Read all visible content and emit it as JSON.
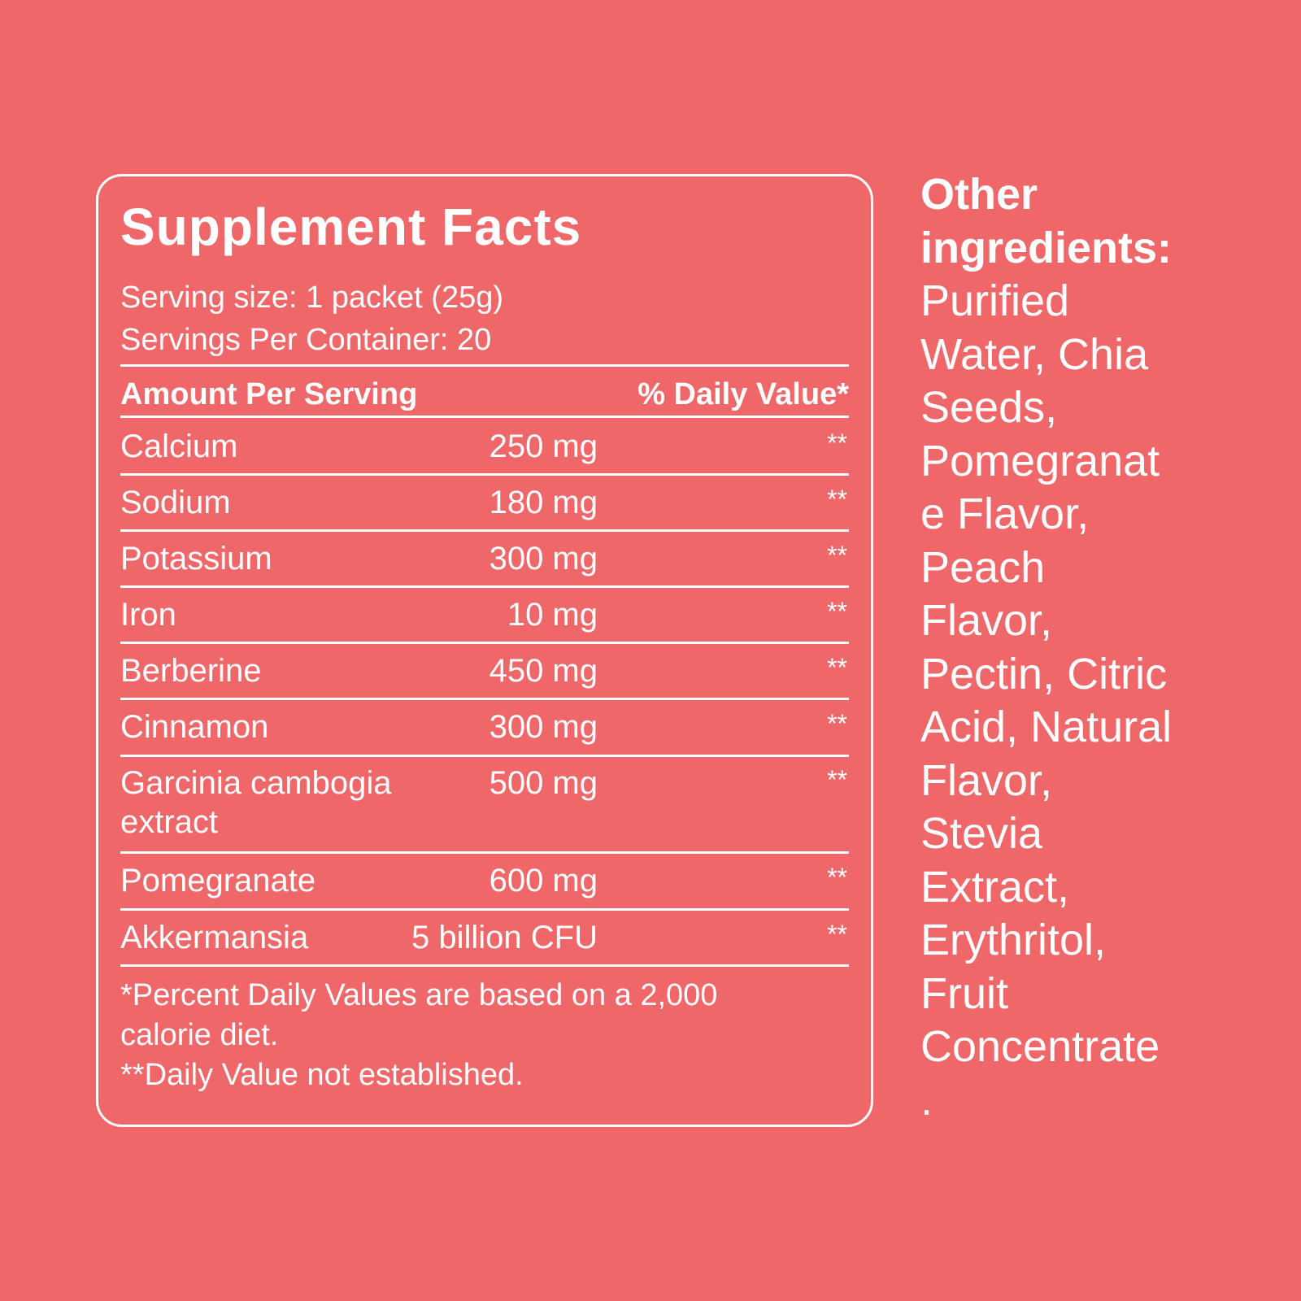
{
  "facts": {
    "title": "Supplement Facts",
    "serving_size": "Serving size: 1 packet (25g)",
    "servings_per_container": "Servings Per Container: 20",
    "header_amount": "Amount Per Serving",
    "header_daily_value": "% Daily Value*",
    "rows": [
      {
        "name": "Calcium",
        "amount": "250 mg",
        "dv": "**"
      },
      {
        "name": "Sodium",
        "amount": "180 mg",
        "dv": "**"
      },
      {
        "name": "Potassium",
        "amount": "300 mg",
        "dv": "**"
      },
      {
        "name": "Iron",
        "amount": "10 mg",
        "dv": "**"
      },
      {
        "name": "Berberine",
        "amount": "450 mg",
        "dv": "**"
      },
      {
        "name": "Cinnamon",
        "amount": "300 mg",
        "dv": "**"
      },
      {
        "name": "Garcinia cambogia",
        "name_line2": "extract",
        "amount": "500 mg",
        "dv": "**"
      },
      {
        "name": "Pomegranate",
        "amount": "600 mg",
        "dv": "**"
      },
      {
        "name": "Akkermansia",
        "amount": "5 billion CFU",
        "dv": "**"
      }
    ],
    "footnote_line1": "*Percent Daily Values are based on a 2,000",
    "footnote_line2": "calorie diet.",
    "footnote_line3": "**Daily Value not established."
  },
  "other_ingredients": {
    "title_line1": "Other",
    "title_line2": "ingredients:",
    "lines": [
      "Purified",
      "Water, Chia",
      "Seeds,",
      "Pomegranat",
      "e Flavor,",
      "Peach",
      "Flavor,",
      "Pectin, Citric",
      "Acid, Natural",
      "Flavor,",
      "Stevia",
      "Extract,",
      "Erythritol,",
      "Fruit",
      "Concentrate",
      "."
    ]
  },
  "colors": {
    "background": "#F0676A",
    "foreground": "#FFFFFF"
  }
}
